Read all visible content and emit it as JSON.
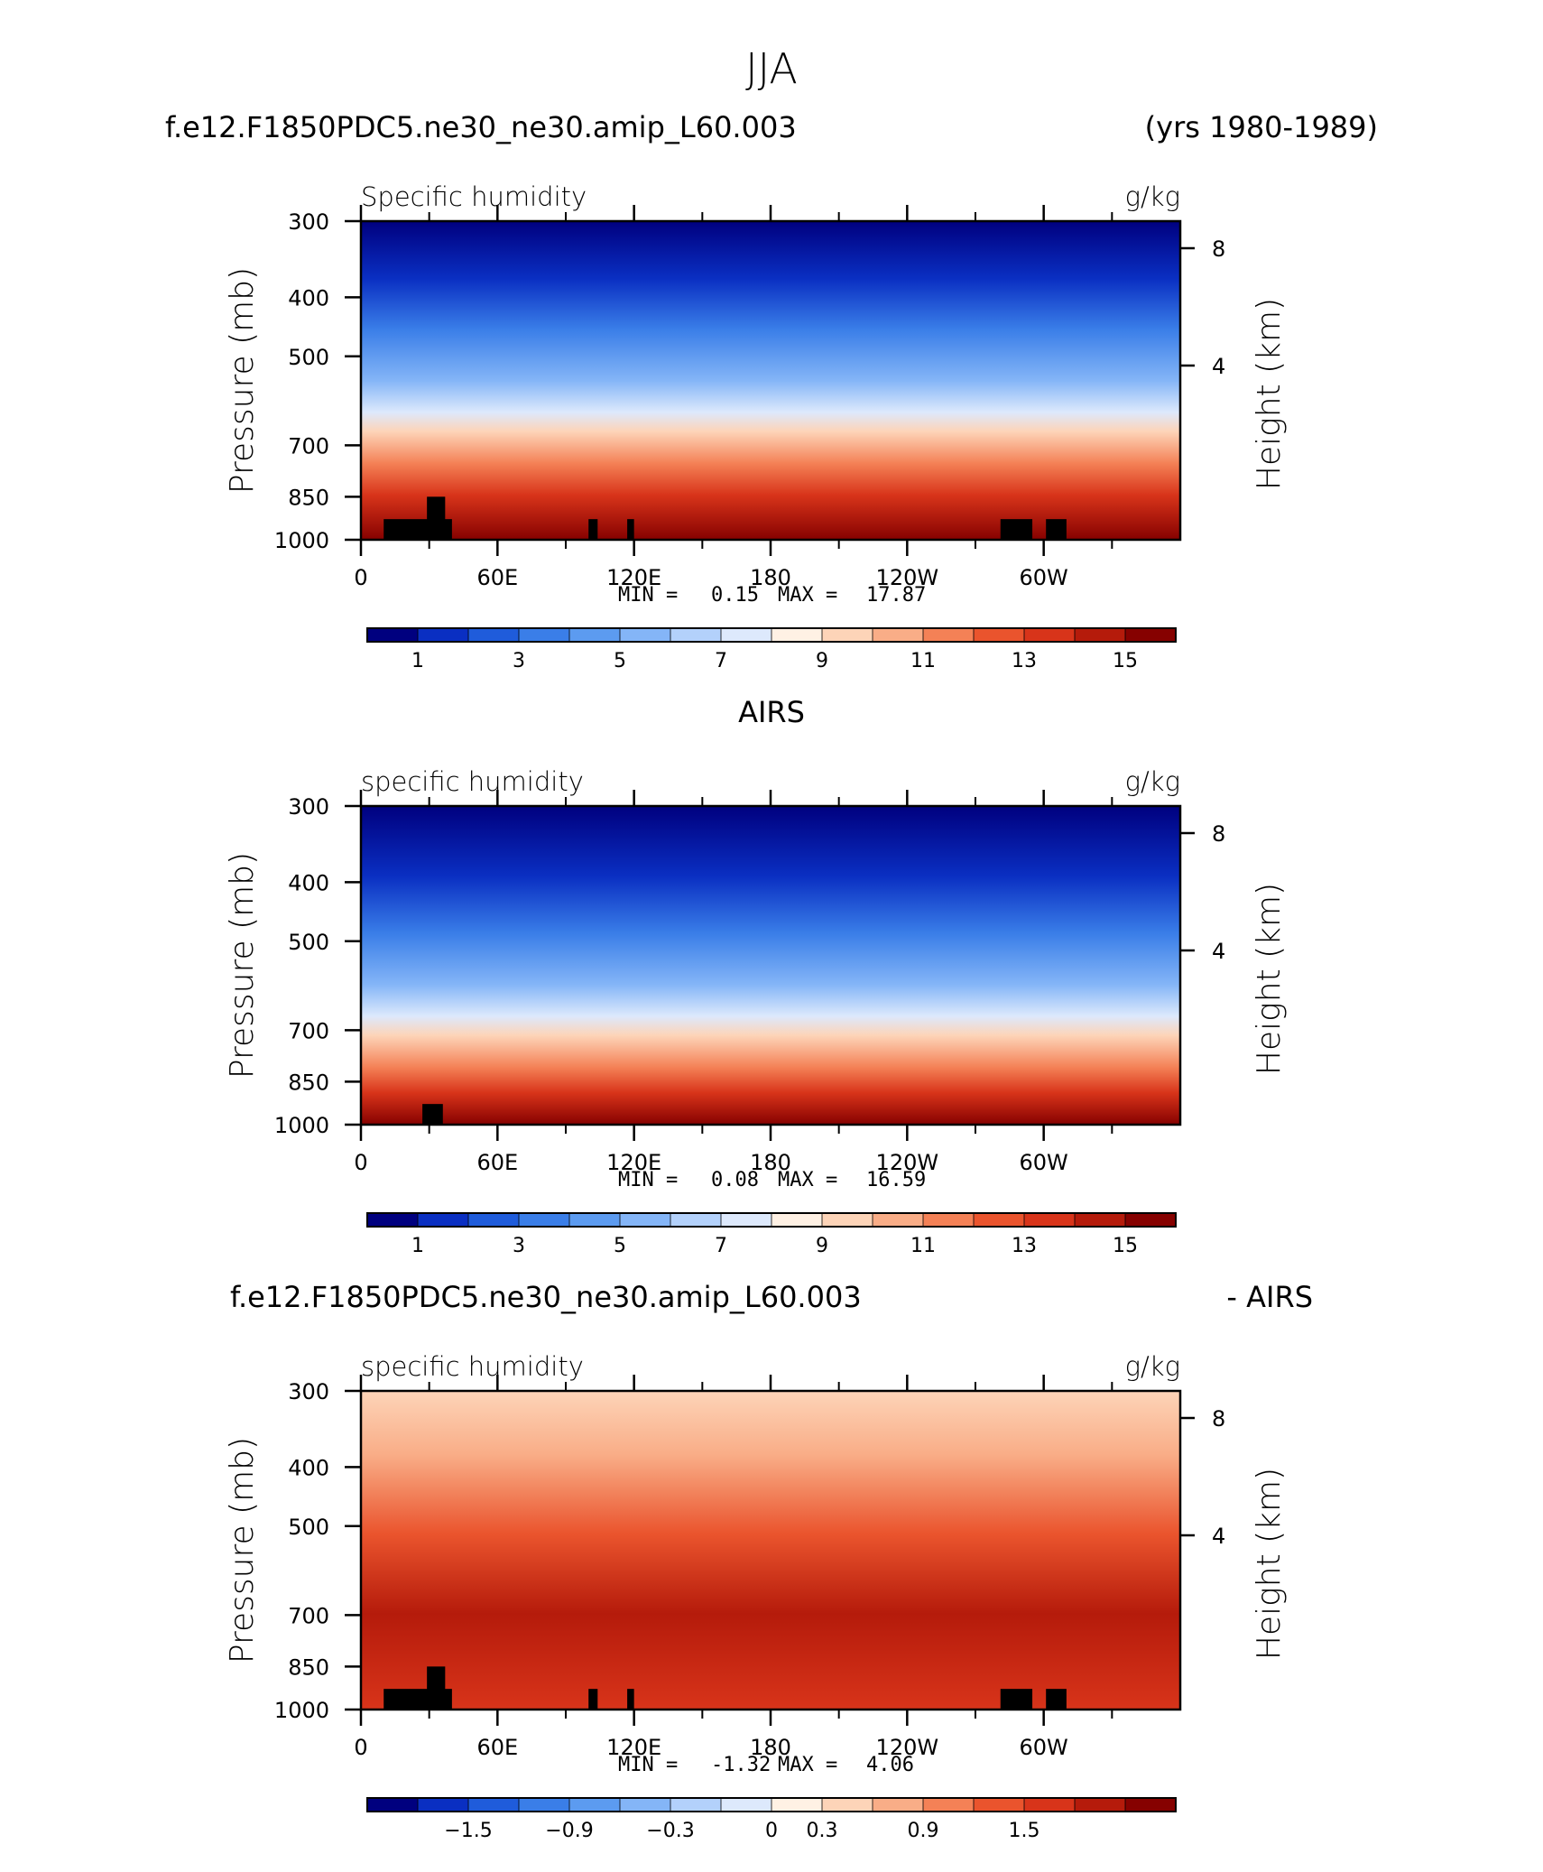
{
  "figure": {
    "title": "JJA"
  },
  "panels": [
    {
      "left_title": "f.e12.F1850PDC5.ne30_ne30.amip_L60.003",
      "right_title": "(yrs 1980-1989)",
      "variable": "Specific humidity",
      "units": "g/kg",
      "ylabel": "Pressure (mb)",
      "ylabel_right": "Height (km)",
      "stats": {
        "min_label": "MIN =",
        "min": "0.15",
        "max_label": "MAX =",
        "max": "17.87"
      }
    },
    {
      "left_title": "",
      "center_title": "AIRS",
      "right_title": "",
      "variable": "specific humidity",
      "units": "g/kg",
      "ylabel": "Pressure (mb)",
      "ylabel_right": "Height (km)",
      "stats": {
        "min_label": "MIN =",
        "min": "0.08",
        "max_label": "MAX =",
        "max": "16.59"
      }
    },
    {
      "left_title": "f.e12.F1850PDC5.ne30_ne30.amip_L60.003",
      "right_title": "- AIRS",
      "variable": "specific humidity",
      "units": "g/kg",
      "ylabel": "Pressure (mb)",
      "ylabel_right": "Height (km)",
      "stats": {
        "min_label": "MIN =",
        "min": "-1.32",
        "max_label": "MAX =",
        "max": "4.06"
      }
    }
  ],
  "chart_data": [
    {
      "type": "heatmap",
      "title": "Specific humidity",
      "xlabel": "",
      "ylabel": "Pressure (mb)",
      "ylabel_right": "Height (km)",
      "x_ticks": [
        "0",
        "60E",
        "120E",
        "180",
        "120W",
        "60W"
      ],
      "x_range": [
        0,
        360
      ],
      "y_ticks": [
        300,
        400,
        500,
        700,
        850,
        1000
      ],
      "y_range": [
        300,
        1000
      ],
      "y_scale": "log",
      "y_right_ticks": [
        8,
        4
      ],
      "levels": [
        0,
        1,
        2,
        3,
        4,
        5,
        6,
        7,
        8,
        9,
        10,
        11,
        12,
        13,
        14,
        15,
        16
      ],
      "colorbar_labels": [
        "1",
        "3",
        "5",
        "7",
        "9",
        "11",
        "13",
        "15"
      ],
      "colors": [
        "#00007f",
        "#0a2fc2",
        "#1f5cdb",
        "#3a7ee8",
        "#5c9bf0",
        "#84b5f7",
        "#b3d1fb",
        "#dde9fc",
        "#fff1e4",
        "#fdd4b8",
        "#f9ad87",
        "#f48156",
        "#ea542d",
        "#d8341a",
        "#b51b0b",
        "#860100"
      ],
      "series": [
        {
          "lon": 0,
          "surface_pressure": 1000
        },
        {
          "lon": 90,
          "surface_pressure": 1000
        },
        {
          "lon": 180,
          "surface_pressure": 1000
        },
        {
          "lon": 270,
          "surface_pressure": 1000
        },
        {
          "lon": 360,
          "surface_pressure": 1000
        }
      ],
      "terrain_mask": [
        {
          "lon": [
            10,
            40
          ],
          "top_pressure": 925
        },
        {
          "lon": [
            29,
            37
          ],
          "top_pressure": 850
        },
        {
          "lon": [
            100,
            104
          ],
          "top_pressure": 925
        },
        {
          "lon": [
            117,
            120
          ],
          "top_pressure": 925
        },
        {
          "lon": [
            281,
            295
          ],
          "top_pressure": 925
        },
        {
          "lon": [
            301,
            310
          ],
          "top_pressure": 925
        }
      ]
    },
    {
      "type": "heatmap",
      "title": "specific humidity",
      "ylabel": "Pressure (mb)",
      "ylabel_right": "Height (km)",
      "x_ticks": [
        "0",
        "60E",
        "120E",
        "180",
        "120W",
        "60W"
      ],
      "x_range": [
        0,
        360
      ],
      "y_ticks": [
        300,
        400,
        500,
        700,
        850,
        1000
      ],
      "y_range": [
        300,
        1000
      ],
      "y_scale": "log",
      "y_right_ticks": [
        8,
        4
      ],
      "levels": [
        0,
        1,
        2,
        3,
        4,
        5,
        6,
        7,
        8,
        9,
        10,
        11,
        12,
        13,
        14,
        15,
        16
      ],
      "colorbar_labels": [
        "1",
        "3",
        "5",
        "7",
        "9",
        "11",
        "13",
        "15"
      ],
      "colors": [
        "#00007f",
        "#0a2fc2",
        "#1f5cdb",
        "#3a7ee8",
        "#5c9bf0",
        "#84b5f7",
        "#b3d1fb",
        "#dde9fc",
        "#fff1e4",
        "#fdd4b8",
        "#f9ad87",
        "#f48156",
        "#ea542d",
        "#d8341a",
        "#b51b0b",
        "#860100"
      ],
      "terrain_mask": [
        {
          "lon": [
            27,
            36
          ],
          "top_pressure": 925
        }
      ]
    },
    {
      "type": "heatmap",
      "title": "specific humidity",
      "ylabel": "Pressure (mb)",
      "ylabel_right": "Height (km)",
      "x_ticks": [
        "0",
        "60E",
        "120E",
        "180",
        "120W",
        "60W"
      ],
      "x_range": [
        0,
        360
      ],
      "y_ticks": [
        300,
        400,
        500,
        700,
        850,
        1000
      ],
      "y_range": [
        300,
        1000
      ],
      "y_scale": "log",
      "y_right_ticks": [
        8,
        4
      ],
      "levels": [
        -2.1,
        -1.8,
        -1.5,
        -1.2,
        -0.9,
        -0.6,
        -0.3,
        0,
        0.3,
        0.6,
        0.9,
        1.2,
        1.5,
        1.8,
        2.1
      ],
      "colorbar_labels": [
        "-1.5",
        "-0.9",
        "-0.3",
        "0",
        "0.3",
        "0.9",
        "1.5"
      ],
      "colors": [
        "#00007f",
        "#0a2fc2",
        "#1f5cdb",
        "#3a7ee8",
        "#5c9bf0",
        "#84b5f7",
        "#b3d1fb",
        "#dde9fc",
        "#fff1e4",
        "#fdd4b8",
        "#f9ad87",
        "#f48156",
        "#ea542d",
        "#d8341a",
        "#b51b0b",
        "#860100"
      ],
      "terrain_mask": [
        {
          "lon": [
            10,
            40
          ],
          "top_pressure": 925
        },
        {
          "lon": [
            29,
            37
          ],
          "top_pressure": 850
        },
        {
          "lon": [
            100,
            104
          ],
          "top_pressure": 925
        },
        {
          "lon": [
            117,
            120
          ],
          "top_pressure": 925
        },
        {
          "lon": [
            281,
            295
          ],
          "top_pressure": 925
        },
        {
          "lon": [
            301,
            310
          ],
          "top_pressure": 925
        }
      ]
    }
  ]
}
